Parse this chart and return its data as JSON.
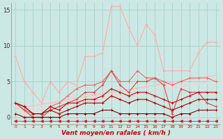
{
  "background_color": "#cce8e4",
  "grid_color": "#aad4ce",
  "xlabel": "Vent moyen/en rafales ( km/h )",
  "xlabel_color": "#cc0000",
  "xlabel_fontsize": 6.5,
  "xtick_color": "#cc0000",
  "ytick_color": "#333333",
  "xmin": -0.5,
  "xmax": 23.5,
  "ymin": -1.0,
  "ymax": 16.0,
  "yticks": [
    0,
    5,
    10,
    15
  ],
  "xticks": [
    0,
    1,
    2,
    3,
    4,
    5,
    6,
    7,
    8,
    9,
    10,
    11,
    12,
    13,
    14,
    15,
    16,
    17,
    18,
    19,
    20,
    21,
    22,
    23
  ],
  "series": [
    {
      "color": "#ffaaaa",
      "marker": "+",
      "markersize": 3,
      "linewidth": 0.8,
      "y": [
        8.5,
        5.0,
        3.5,
        2.0,
        5.0,
        3.5,
        5.0,
        4.5,
        8.5,
        8.5,
        9.0,
        15.5,
        15.5,
        12.5,
        10.0,
        13.0,
        11.5,
        6.5,
        6.5,
        6.5,
        6.5,
        9.0,
        10.5,
        10.5
      ]
    },
    {
      "color": "#ffbbbb",
      "marker": "+",
      "markersize": 3,
      "linewidth": 0.8,
      "y": [
        1.2,
        1.4,
        1.6,
        1.8,
        2.0,
        2.2,
        2.5,
        2.7,
        2.9,
        3.1,
        3.3,
        3.5,
        3.7,
        3.9,
        4.1,
        4.3,
        4.5,
        4.7,
        4.9,
        5.1,
        5.3,
        5.5,
        5.7,
        5.9
      ]
    },
    {
      "color": "#ffcccc",
      "marker": "+",
      "markersize": 3,
      "linewidth": 0.8,
      "y": [
        0.5,
        0.7,
        0.9,
        1.1,
        1.3,
        1.5,
        1.7,
        1.9,
        2.1,
        2.3,
        2.5,
        2.7,
        2.9,
        3.1,
        3.3,
        3.5,
        3.7,
        3.9,
        4.1,
        4.3,
        4.5,
        4.7,
        4.9,
        5.1
      ]
    },
    {
      "color": "#ee6666",
      "marker": "+",
      "markersize": 3,
      "linewidth": 0.8,
      "y": [
        2.0,
        1.0,
        0.5,
        0.5,
        1.5,
        2.0,
        3.0,
        4.0,
        4.5,
        4.5,
        5.0,
        6.5,
        5.0,
        5.0,
        6.5,
        5.5,
        5.5,
        5.0,
        4.5,
        5.0,
        5.5,
        5.5,
        5.5,
        5.0
      ]
    },
    {
      "color": "#dd4444",
      "marker": "+",
      "markersize": 3,
      "linewidth": 0.8,
      "y": [
        2.0,
        1.0,
        0.0,
        0.0,
        1.0,
        1.5,
        2.0,
        2.5,
        3.5,
        3.5,
        4.5,
        6.5,
        4.5,
        3.5,
        5.0,
        5.0,
        5.5,
        4.5,
        0.5,
        4.0,
        3.5,
        3.5,
        2.0,
        1.5
      ]
    },
    {
      "color": "#cc0000",
      "marker": "+",
      "markersize": 3,
      "linewidth": 0.8,
      "y": [
        2.0,
        1.5,
        0.5,
        0.5,
        1.5,
        1.0,
        2.0,
        2.0,
        2.5,
        2.5,
        3.0,
        4.0,
        3.5,
        3.0,
        3.5,
        3.5,
        3.0,
        2.5,
        2.0,
        2.5,
        3.0,
        3.5,
        3.5,
        3.5
      ]
    },
    {
      "color": "#aa0000",
      "marker": "+",
      "markersize": 3,
      "linewidth": 0.8,
      "y": [
        2.0,
        1.5,
        0.5,
        0.5,
        1.0,
        0.5,
        1.0,
        1.5,
        2.0,
        2.0,
        2.0,
        3.0,
        2.5,
        2.0,
        2.5,
        2.5,
        2.0,
        1.5,
        1.0,
        1.5,
        2.0,
        2.5,
        2.5,
        2.5
      ]
    },
    {
      "color": "#880000",
      "marker": "+",
      "markersize": 3,
      "linewidth": 0.8,
      "y": [
        0.5,
        0.0,
        0.0,
        0.0,
        0.0,
        0.0,
        0.5,
        0.5,
        0.5,
        0.5,
        1.0,
        1.0,
        0.5,
        0.5,
        0.5,
        0.5,
        0.5,
        0.5,
        0.0,
        0.5,
        0.5,
        1.0,
        1.0,
        1.0
      ]
    },
    {
      "color": "#ff0000",
      "marker": "<",
      "markersize": 2.5,
      "linewidth": 0.5,
      "y": [
        -0.5,
        -0.5,
        -0.5,
        -0.5,
        -0.5,
        -0.5,
        -0.5,
        -0.5,
        -0.5,
        -0.5,
        -0.5,
        -0.5,
        -0.5,
        -0.5,
        -0.5,
        -0.5,
        -0.5,
        -0.5,
        -0.5,
        -0.5,
        -0.5,
        -0.5,
        -0.5,
        -0.5
      ]
    }
  ]
}
